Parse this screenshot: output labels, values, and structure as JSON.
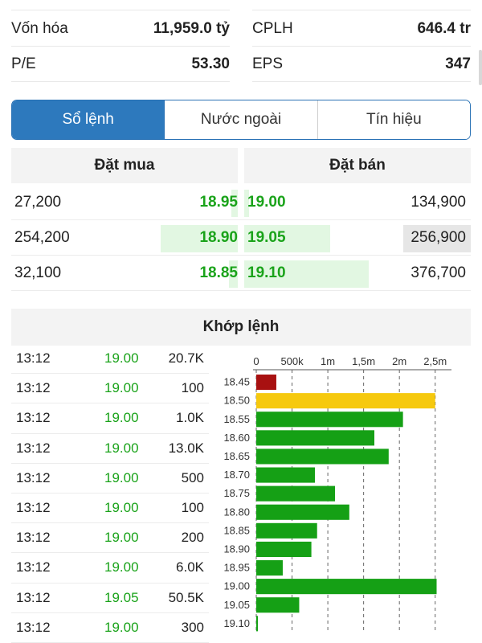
{
  "stats": {
    "left": [
      {
        "label": "Vốn hóa",
        "value": "11,959.0 tỷ"
      },
      {
        "label": "P/E",
        "value": "53.30"
      }
    ],
    "right": [
      {
        "label": "CPLH",
        "value": "646.4 tr"
      },
      {
        "label": "EPS",
        "value": "347"
      }
    ]
  },
  "tabs": [
    {
      "label": "Sổ lệnh",
      "active": true
    },
    {
      "label": "Nước ngoài",
      "active": false
    },
    {
      "label": "Tín hiệu",
      "active": false
    }
  ],
  "order_book": {
    "buy_header": "Đặt mua",
    "sell_header": "Đặt bán",
    "rows": [
      {
        "buy_volume": "27,200",
        "buy_price": "18.95",
        "buy_level": 0.03,
        "sell_price": "19.00",
        "sell_level": 0.02,
        "sell_volume": "134,900",
        "sell_highlight": false
      },
      {
        "buy_volume": "254,200",
        "buy_price": "18.90",
        "buy_level": 0.34,
        "sell_price": "19.05",
        "sell_level": 0.38,
        "sell_volume": "256,900",
        "sell_highlight": true
      },
      {
        "buy_volume": "32,100",
        "buy_price": "18.85",
        "buy_level": 0.04,
        "sell_price": "19.10",
        "sell_level": 0.55,
        "sell_volume": "376,700",
        "sell_highlight": false
      }
    ]
  },
  "matched": {
    "title": "Khớp lệnh",
    "trades": [
      {
        "time": "13:12",
        "price": "19.00",
        "volume": "20.7K"
      },
      {
        "time": "13:12",
        "price": "19.00",
        "volume": "100"
      },
      {
        "time": "13:12",
        "price": "19.00",
        "volume": "1.0K"
      },
      {
        "time": "13:12",
        "price": "19.00",
        "volume": "13.0K"
      },
      {
        "time": "13:12",
        "price": "19.00",
        "volume": "500"
      },
      {
        "time": "13:12",
        "price": "19.00",
        "volume": "100"
      },
      {
        "time": "13:12",
        "price": "19.00",
        "volume": "200"
      },
      {
        "time": "13:12",
        "price": "19.00",
        "volume": "6.0K"
      },
      {
        "time": "13:12",
        "price": "19.05",
        "volume": "50.5K"
      },
      {
        "time": "13:12",
        "price": "19.00",
        "volume": "300"
      }
    ]
  },
  "colors": {
    "accent": "#2d79bd",
    "up_green": "#1aa31a",
    "bar_green": "#15a015",
    "bar_red": "#a81111",
    "bar_yellow": "#f6c90e"
  },
  "chart_data": {
    "type": "bar",
    "orientation": "horizontal",
    "categories": [
      "18.45",
      "18.50",
      "18.55",
      "18.60",
      "18.65",
      "18.70",
      "18.75",
      "18.80",
      "18.85",
      "18.90",
      "18.95",
      "19.00",
      "19.05",
      "19.10"
    ],
    "values": [
      280000,
      2500000,
      2050000,
      1650000,
      1850000,
      820000,
      1100000,
      1300000,
      850000,
      770000,
      370000,
      2520000,
      600000,
      20000
    ],
    "colors": [
      "#a81111",
      "#f6c90e",
      "#15a015",
      "#15a015",
      "#15a015",
      "#15a015",
      "#15a015",
      "#15a015",
      "#15a015",
      "#15a015",
      "#15a015",
      "#15a015",
      "#15a015",
      "#15a015"
    ],
    "xticks": [
      {
        "value": 0,
        "label": "0"
      },
      {
        "value": 500000,
        "label": "500k"
      },
      {
        "value": 1000000,
        "label": "1m"
      },
      {
        "value": 1500000,
        "label": "1,5m"
      },
      {
        "value": 2000000,
        "label": "2m"
      },
      {
        "value": 2500000,
        "label": "2,5m"
      }
    ],
    "xlim": [
      0,
      2750000
    ],
    "grid": true,
    "xaxis_position": "top"
  }
}
